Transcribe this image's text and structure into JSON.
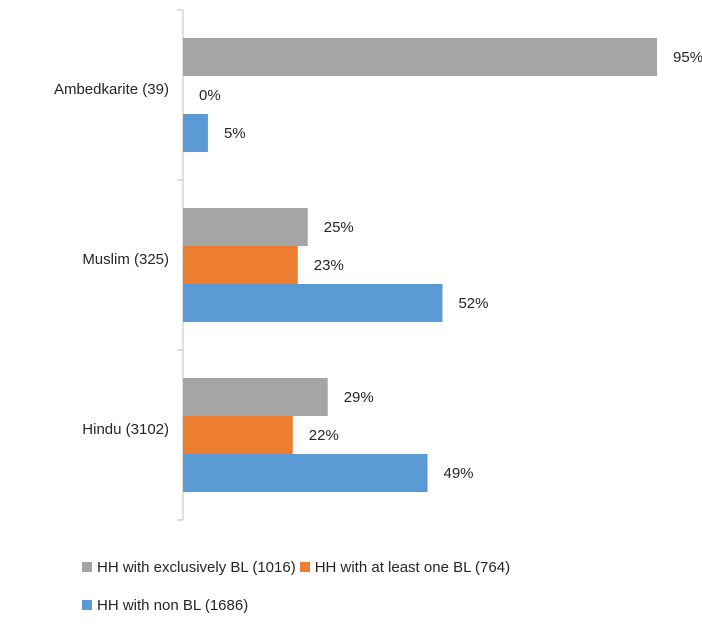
{
  "chart_data": {
    "type": "bar",
    "orientation": "horizontal",
    "categories": [
      "Ambedkarite (39)",
      "Muslim (325)",
      "Hindu (3102)"
    ],
    "series": [
      {
        "name": "HH with exclusively BL (1016)",
        "color": "#a5a5a5",
        "values": [
          95,
          25,
          29
        ],
        "labels": [
          "95%",
          "25%",
          "29%"
        ]
      },
      {
        "name": "HH with at least one BL (764)",
        "color": "#ed7d31",
        "values": [
          0,
          23,
          22
        ],
        "labels": [
          "0%",
          "23%",
          "22%"
        ]
      },
      {
        "name": "HH with non BL (1686)",
        "color": "#5b9bd5",
        "values": [
          5,
          52,
          49
        ],
        "labels": [
          "5%",
          "52%",
          "49%"
        ]
      }
    ],
    "xlim": [
      0,
      100
    ],
    "grid": false,
    "legend_position": "bottom"
  }
}
